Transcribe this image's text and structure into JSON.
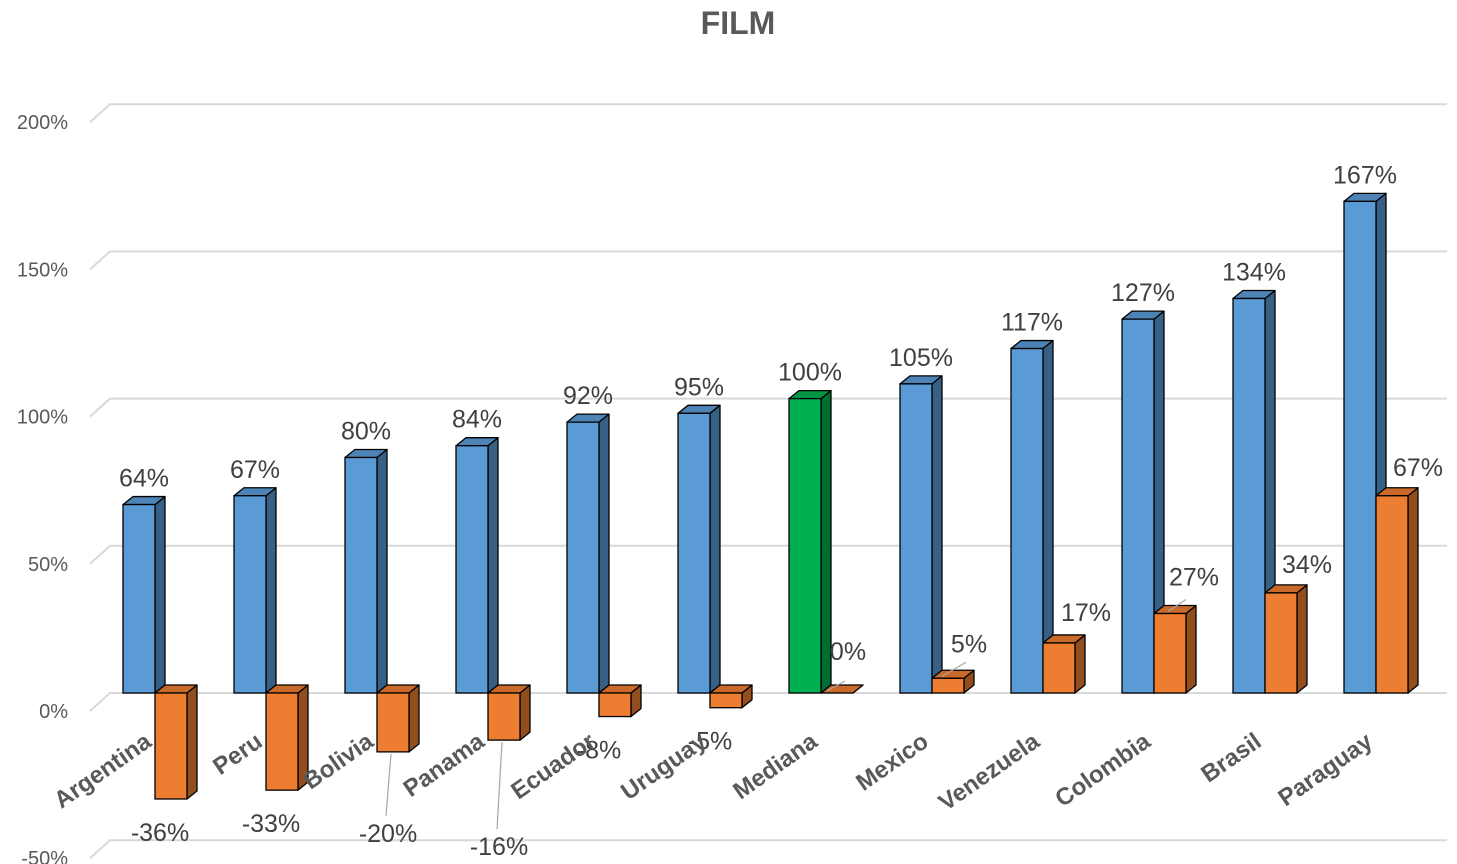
{
  "chart_data": {
    "type": "bar",
    "title": "FILM",
    "categories": [
      "Argentina",
      "Peru",
      "Bolivia",
      "Panama",
      "Ecuador",
      "Uruguay",
      "Mediana",
      "Mexico",
      "Venezuela",
      "Colombia",
      "Brasil",
      "Paraguay"
    ],
    "series": [
      {
        "values": [
          64,
          67,
          80,
          84,
          92,
          95,
          100,
          105,
          117,
          127,
          134,
          167
        ],
        "labels": [
          "64%",
          "67%",
          "80%",
          "84%",
          "92%",
          "95%",
          "100%",
          "105%",
          "117%",
          "127%",
          "134%",
          "167%"
        ],
        "color": "#5b9bd5",
        "highlight_color": "#00b050",
        "highlight_category": "Mediana"
      },
      {
        "values": [
          -36,
          -33,
          -20,
          -16,
          -8,
          -5,
          0,
          5,
          17,
          27,
          34,
          67
        ],
        "labels": [
          "-36%",
          "-33%",
          "-20%",
          "-16%",
          "-8%",
          "-5%",
          "0%",
          "5%",
          "17%",
          "27%",
          "34%",
          "67%"
        ],
        "color": "#ed7d31"
      }
    ],
    "ylim": [
      -50,
      200
    ],
    "yticks": [
      "-50%",
      "0%",
      "50%",
      "100%",
      "150%",
      "200%"
    ],
    "ytick_values": [
      -50,
      0,
      50,
      100,
      150,
      200
    ],
    "grid": true,
    "three_d": true
  }
}
